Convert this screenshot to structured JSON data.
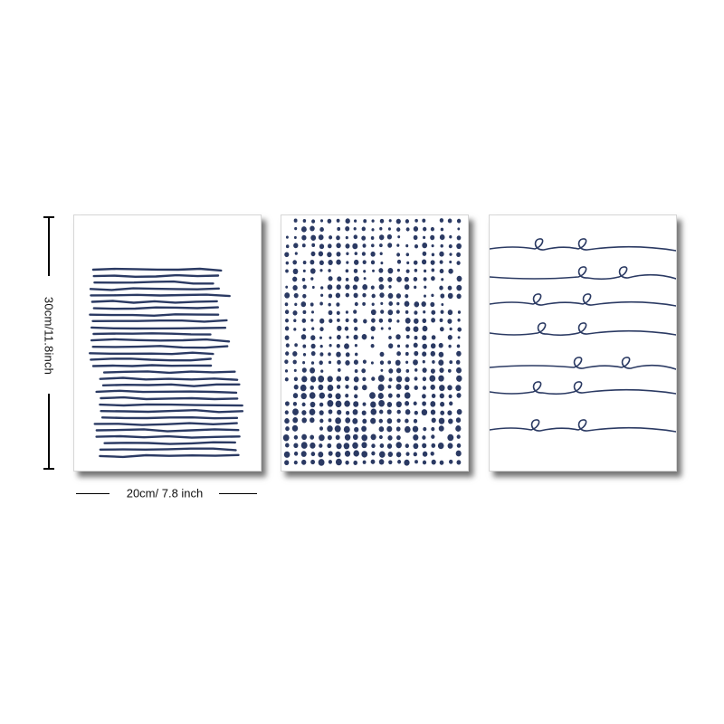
{
  "dimensions": {
    "height_label": "30cm/11.8inch",
    "width_label": "20cm/ 7.8 inch"
  },
  "colors": {
    "ink": "#2b3a63",
    "background": "#ffffff",
    "panel_border": "#d6d6d6"
  },
  "panels": [
    {
      "name": "horizontal-lines-print",
      "pattern": "wavy horizontal brush lines"
    },
    {
      "name": "dot-grid-print",
      "pattern": "grid of dots"
    },
    {
      "name": "loop-lines-print",
      "pattern": "wavy lines with loops"
    }
  ]
}
